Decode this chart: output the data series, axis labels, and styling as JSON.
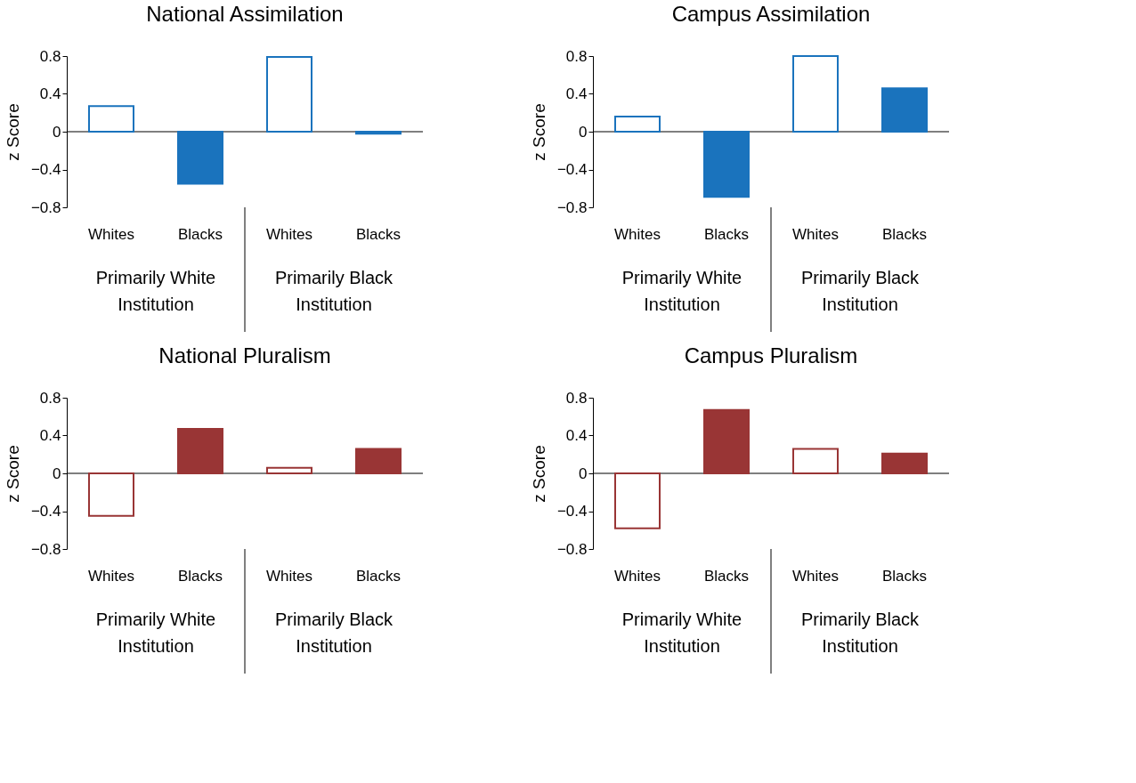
{
  "chart_data": [
    {
      "type": "bar",
      "title": "National Assimilation",
      "ylabel": "z Score",
      "categories": [
        "Whites",
        "Blacks",
        "Whites",
        "Blacks"
      ],
      "yticks": [
        -0.8,
        -0.4,
        0,
        0.4,
        0.8
      ],
      "series": [
        {
          "color": "#1a73bd",
          "values": [
            0.27,
            null,
            0.79,
            null
          ]
        },
        {
          "color": "#1a73bd",
          "values": [
            null,
            -0.55,
            null,
            -0.02
          ]
        }
      ],
      "ylim": [
        -0.8,
        0.8
      ],
      "ref_lines": [
        {
          "axis": "y",
          "value": 0
        }
      ],
      "annotations": [
        "Primarily White\nInstitution",
        "Primarily Black\nInstitution"
      ]
    },
    {
      "type": "bar",
      "title": "Campus Assimilation",
      "ylabel": "z Score",
      "categories": [
        "Whites",
        "Blacks",
        "Whites",
        "Blacks"
      ],
      "yticks": [
        -0.8,
        -0.4,
        0,
        0.4,
        0.8
      ],
      "series": [
        {
          "color": "#1a73bd",
          "values": [
            0.16,
            null,
            0.8,
            null
          ]
        },
        {
          "color": "#1a73bd",
          "values": [
            null,
            -0.69,
            null,
            0.46
          ]
        }
      ],
      "ylim": [
        -0.8,
        0.8
      ],
      "ref_lines": [
        {
          "axis": "y",
          "value": 0
        }
      ],
      "annotations": [
        "Primarily White\nInstitution",
        "Primarily Black\nInstitution"
      ]
    },
    {
      "type": "bar",
      "title": "National Pluralism",
      "ylabel": "z Score",
      "categories": [
        "Whites",
        "Blacks",
        "Whites",
        "Blacks"
      ],
      "yticks": [
        -0.8,
        -0.4,
        0,
        0.4,
        0.8
      ],
      "series": [
        {
          "color": "#993535",
          "values": [
            -0.45,
            null,
            0.06,
            null
          ]
        },
        {
          "color": "#993535",
          "values": [
            null,
            0.47,
            null,
            0.26
          ]
        }
      ],
      "ylim": [
        -0.8,
        0.8
      ],
      "ref_lines": [
        {
          "axis": "y",
          "value": 0
        }
      ],
      "annotations": [
        "Primarily White\nInstitution",
        "Primarily Black\nInstitution"
      ]
    },
    {
      "type": "bar",
      "title": "Campus Pluralism",
      "ylabel": "z Score",
      "categories": [
        "Whites",
        "Blacks",
        "Whites",
        "Blacks"
      ],
      "yticks": [
        -0.8,
        -0.4,
        0,
        0.4,
        0.8
      ],
      "series": [
        {
          "color": "#993535",
          "values": [
            -0.58,
            null,
            0.26,
            null
          ]
        },
        {
          "color": "#993535",
          "values": [
            null,
            0.67,
            null,
            0.21
          ]
        }
      ],
      "ylim": [
        -0.8,
        0.8
      ],
      "ref_lines": [
        {
          "axis": "y",
          "value": 0
        }
      ],
      "annotations": [
        "Primarily White\nInstitution",
        "Primarily Black\nInstitution"
      ]
    }
  ]
}
